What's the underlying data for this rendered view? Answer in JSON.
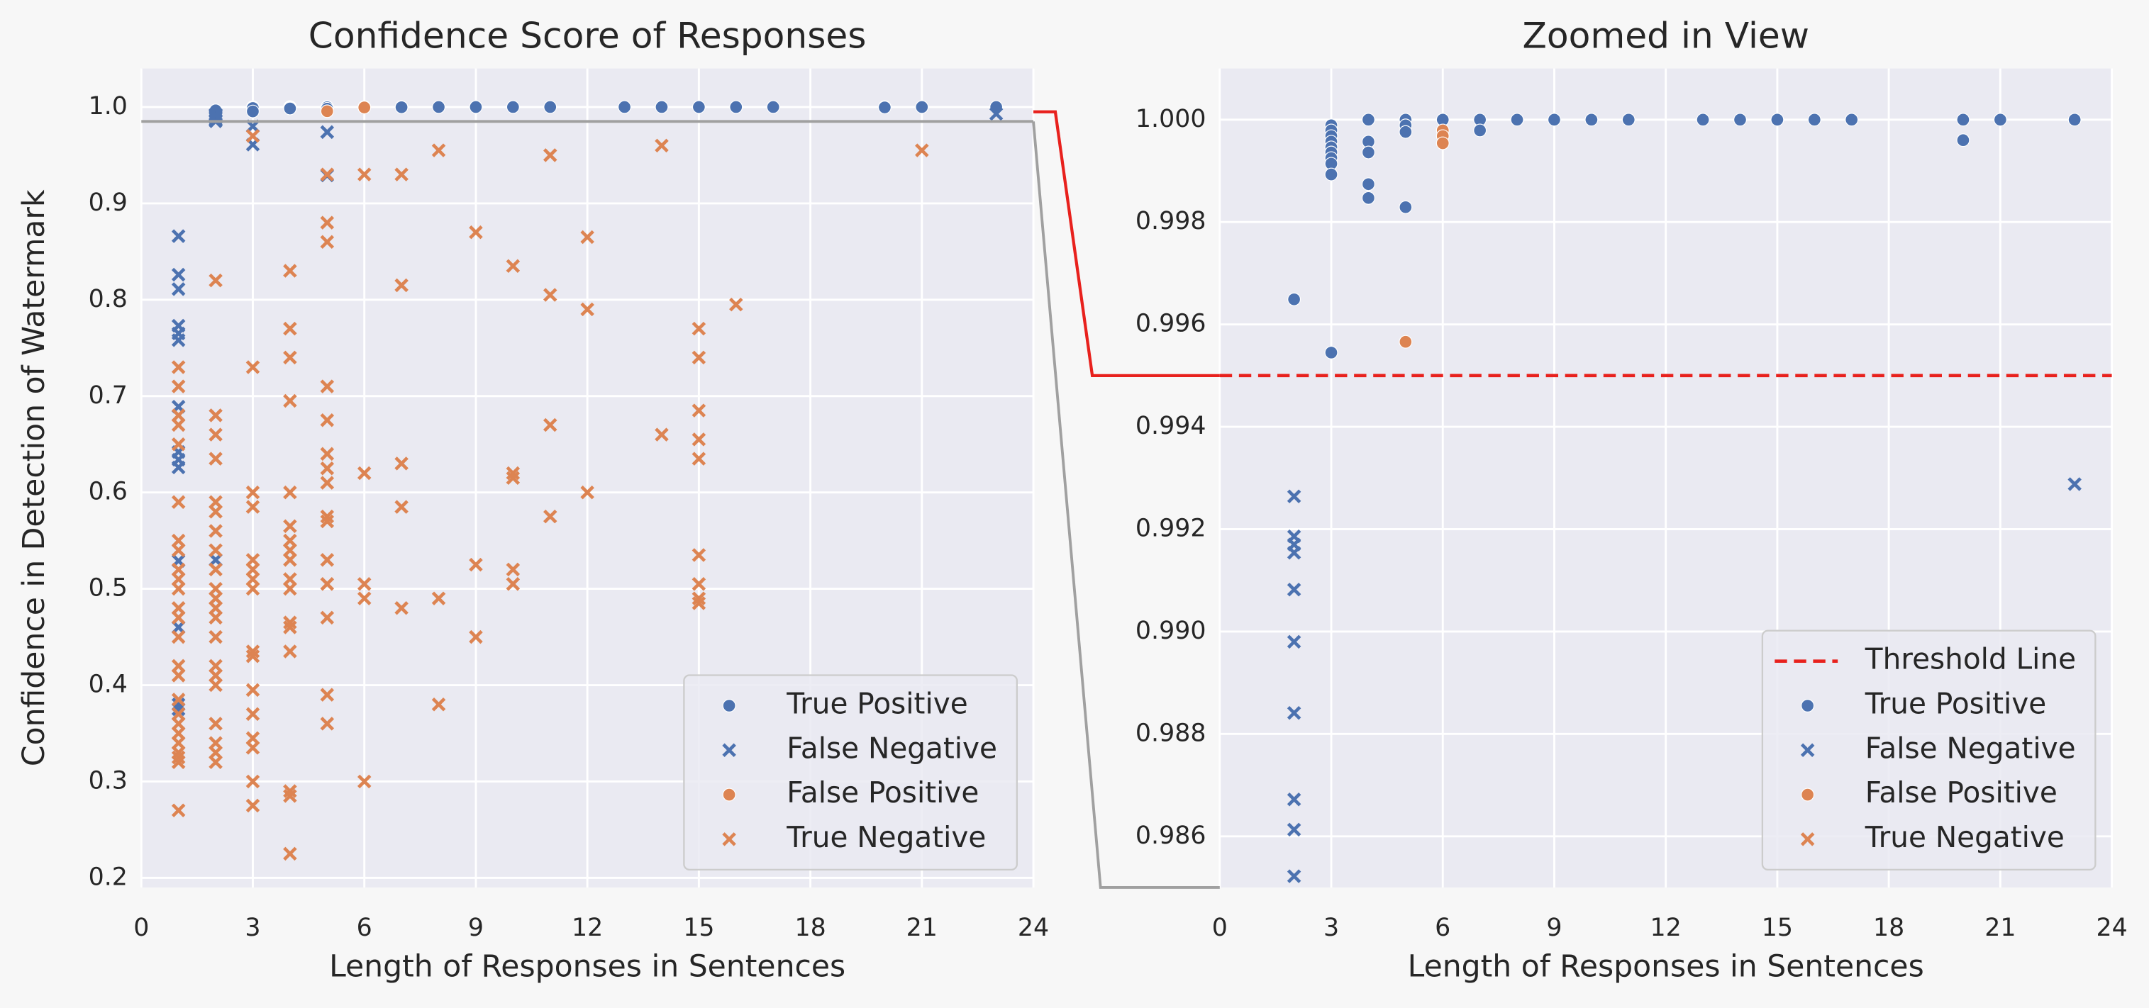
{
  "chart_data": [
    {
      "type": "scatter",
      "title": "Confidence Score of Responses",
      "xlabel": "Length of Responses in Sentences",
      "ylabel": "Confidence in Detection of Watermark",
      "xlim": [
        0,
        24
      ],
      "ylim": [
        0.19,
        1.04
      ],
      "xticks": [
        0,
        3,
        6,
        9,
        12,
        15,
        18,
        21,
        24
      ],
      "yticks": [
        0.2,
        0.3,
        0.4,
        0.5,
        0.6,
        0.7,
        0.8,
        0.9,
        {
          "value": 1,
          "label": "1.0"
        }
      ],
      "grid": true,
      "legend": "lower right",
      "series": [
        {
          "name": "True Positive",
          "marker": "o",
          "color": "#4c72b0",
          "x": [
            2,
            3,
            3,
            3,
            3,
            3,
            3,
            3,
            3,
            3,
            3,
            4,
            4,
            4,
            4,
            4,
            5,
            5,
            5,
            5,
            6,
            7,
            7,
            8,
            9,
            10,
            11,
            13,
            14,
            15,
            16,
            17,
            20,
            20,
            21,
            23
          ],
          "values": [
            0.99649,
            0.99989,
            0.99979,
            0.99968,
            0.99957,
            0.99946,
            0.99936,
            0.99925,
            0.99914,
            0.99893,
            0.99545,
            1.0,
            0.99957,
            0.99936,
            0.99874,
            0.99847,
            1.0,
            0.99989,
            0.99976,
            0.99829,
            1.0,
            1.0,
            0.99979,
            1.0,
            1.0,
            1.0,
            1.0,
            1.0,
            1.0,
            1.0,
            1.0,
            1.0,
            1.0,
            0.9996,
            1.0,
            1.0
          ]
        },
        {
          "name": "False Negative",
          "marker": "x",
          "color": "#4c72b0",
          "x": [
            1,
            1,
            1,
            1,
            1,
            1,
            1,
            1,
            1,
            1,
            1,
            1,
            1,
            1,
            2,
            2,
            2,
            2,
            2,
            2,
            2,
            2,
            2,
            2,
            2,
            3,
            3,
            5,
            5,
            23
          ],
          "values": [
            0.866,
            0.826,
            0.811,
            0.773,
            0.765,
            0.758,
            0.689,
            0.642,
            0.634,
            0.626,
            0.529,
            0.46,
            0.38,
            0.375,
            0.99264,
            0.99186,
            0.9917,
            0.99154,
            0.99082,
            0.9898,
            0.98841,
            0.98672,
            0.98613,
            0.98522,
            0.53,
            0.98,
            0.961,
            0.974,
            0.929,
            0.99288
          ]
        },
        {
          "name": "False Positive",
          "marker": "o",
          "color": "#dd8452",
          "x": [
            5,
            6,
            6,
            6
          ],
          "values": [
            0.99566,
            0.99979,
            0.99968,
            0.99954
          ]
        },
        {
          "name": "True Negative",
          "marker": "x",
          "color": "#dd8452",
          "x": [
            1,
            1,
            1,
            1,
            1,
            1,
            1,
            1,
            1,
            1,
            1,
            1,
            1,
            1,
            1,
            1,
            1,
            1,
            1,
            1,
            1,
            1,
            1,
            1,
            1,
            2,
            2,
            2,
            2,
            2,
            2,
            2,
            2,
            2,
            2,
            2,
            2,
            2,
            2,
            2,
            2,
            2,
            2,
            2,
            2,
            2,
            3,
            3,
            3,
            3,
            3,
            3,
            3,
            3,
            3,
            3,
            3,
            3,
            3,
            3,
            3,
            3,
            4,
            4,
            4,
            4,
            4,
            4,
            4,
            4,
            4,
            4,
            4,
            4,
            4,
            4,
            4,
            4,
            4,
            5,
            5,
            5,
            5,
            5,
            5,
            5,
            5,
            5,
            5,
            5,
            5,
            5,
            5,
            5,
            6,
            6,
            6,
            6,
            6,
            7,
            7,
            7,
            7,
            7,
            8,
            8,
            8,
            9,
            9,
            9,
            10,
            10,
            10,
            10,
            10,
            11,
            11,
            11,
            11,
            12,
            12,
            12,
            14,
            14,
            15,
            15,
            15,
            15,
            15,
            15,
            15,
            15,
            15,
            16,
            21
          ],
          "values": [
            0.27,
            0.32,
            0.325,
            0.33,
            0.34,
            0.35,
            0.36,
            0.37,
            0.385,
            0.41,
            0.42,
            0.45,
            0.47,
            0.48,
            0.5,
            0.51,
            0.52,
            0.54,
            0.55,
            0.59,
            0.65,
            0.67,
            0.68,
            0.71,
            0.73,
            0.82,
            0.68,
            0.66,
            0.635,
            0.59,
            0.58,
            0.56,
            0.54,
            0.52,
            0.5,
            0.49,
            0.48,
            0.47,
            0.45,
            0.42,
            0.41,
            0.4,
            0.36,
            0.34,
            0.33,
            0.32,
            0.97,
            0.73,
            0.6,
            0.585,
            0.53,
            0.52,
            0.51,
            0.5,
            0.435,
            0.43,
            0.395,
            0.37,
            0.345,
            0.335,
            0.3,
            0.275,
            0.83,
            0.77,
            0.74,
            0.695,
            0.6,
            0.565,
            0.55,
            0.54,
            0.53,
            0.51,
            0.5,
            0.465,
            0.46,
            0.435,
            0.29,
            0.285,
            0.225,
            0.93,
            0.88,
            0.86,
            0.71,
            0.675,
            0.64,
            0.625,
            0.61,
            0.575,
            0.57,
            0.53,
            0.505,
            0.47,
            0.39,
            0.36,
            0.93,
            0.62,
            0.505,
            0.49,
            0.3,
            0.93,
            0.815,
            0.63,
            0.585,
            0.48,
            0.955,
            0.49,
            0.38,
            0.87,
            0.525,
            0.45,
            0.835,
            0.62,
            0.615,
            0.52,
            0.505,
            0.95,
            0.805,
            0.67,
            0.575,
            0.865,
            0.79,
            0.6,
            0.96,
            0.66,
            0.77,
            0.74,
            0.685,
            0.655,
            0.635,
            0.535,
            0.505,
            0.49,
            0.485,
            0.795,
            0.955
          ]
        }
      ]
    },
    {
      "type": "scatter",
      "title": "Zoomed in View",
      "xlabel": "Length of Responses in Sentences",
      "xlim": [
        0,
        24
      ],
      "ylim": [
        0.985,
        1.001
      ],
      "xticks": [
        0,
        3,
        6,
        9,
        12,
        15,
        18,
        21,
        24
      ],
      "yticks": [
        0.986,
        0.988,
        {
          "value": 0.99,
          "label": "0.990"
        },
        0.992,
        0.994,
        0.996,
        0.998,
        {
          "value": 1,
          "label": "1.000"
        }
      ],
      "grid": true,
      "legend": "lower right",
      "threshold": {
        "name": "Threshold Line",
        "value": 0.995,
        "color": "#e8211d"
      },
      "series": [
        {
          "name": "True Positive",
          "marker": "o",
          "color": "#4c72b0",
          "x": [
            2,
            3,
            3,
            3,
            3,
            3,
            3,
            3,
            3,
            3,
            3,
            4,
            4,
            4,
            4,
            4,
            5,
            5,
            5,
            5,
            6,
            7,
            7,
            8,
            9,
            10,
            11,
            13,
            14,
            15,
            16,
            17,
            20,
            20,
            21,
            23
          ],
          "values": [
            0.99649,
            0.99989,
            0.99979,
            0.99968,
            0.99957,
            0.99946,
            0.99936,
            0.99925,
            0.99914,
            0.99893,
            0.99545,
            1.0,
            0.99957,
            0.99936,
            0.99874,
            0.99847,
            1.0,
            0.99989,
            0.99976,
            0.99829,
            1.0,
            1.0,
            0.99979,
            1.0,
            1.0,
            1.0,
            1.0,
            1.0,
            1.0,
            1.0,
            1.0,
            1.0,
            1.0,
            0.9996,
            1.0,
            1.0
          ]
        },
        {
          "name": "False Negative",
          "marker": "x",
          "color": "#4c72b0",
          "x": [
            2,
            2,
            2,
            2,
            2,
            2,
            2,
            2,
            2,
            2,
            23
          ],
          "values": [
            0.99264,
            0.99186,
            0.9917,
            0.99154,
            0.99082,
            0.9898,
            0.98841,
            0.98672,
            0.98613,
            0.98522,
            0.99288
          ]
        },
        {
          "name": "False Positive",
          "marker": "o",
          "color": "#dd8452",
          "x": [
            5,
            6,
            6,
            6
          ],
          "values": [
            0.99566,
            0.99979,
            0.99968,
            0.99954
          ]
        },
        {
          "name": "True Negative",
          "marker": "x",
          "color": "#dd8452",
          "x": [],
          "values": []
        }
      ]
    }
  ]
}
